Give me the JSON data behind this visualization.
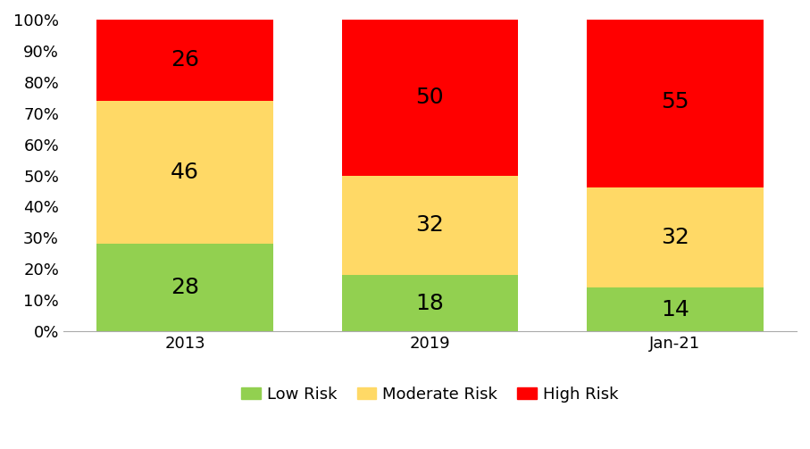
{
  "categories": [
    "2013",
    "2019",
    "Jan-21"
  ],
  "low_risk": [
    28,
    18,
    14
  ],
  "moderate_risk": [
    46,
    32,
    32
  ],
  "high_risk": [
    26,
    50,
    55
  ],
  "colors": {
    "low": "#92D050",
    "moderate": "#FFD966",
    "high": "#FF0000"
  },
  "ylim": [
    0,
    100
  ],
  "yticks": [
    0,
    10,
    20,
    30,
    40,
    50,
    60,
    70,
    80,
    90,
    100
  ],
  "ytick_labels": [
    "0%",
    "10%",
    "20%",
    "30%",
    "40%",
    "50%",
    "60%",
    "70%",
    "80%",
    "90%",
    "100%"
  ],
  "legend_labels": [
    "Low Risk",
    "Moderate Risk",
    "High Risk"
  ],
  "bar_width": 0.72,
  "label_fontsize": 18,
  "tick_fontsize": 13,
  "legend_fontsize": 13,
  "background_color": "#ffffff"
}
